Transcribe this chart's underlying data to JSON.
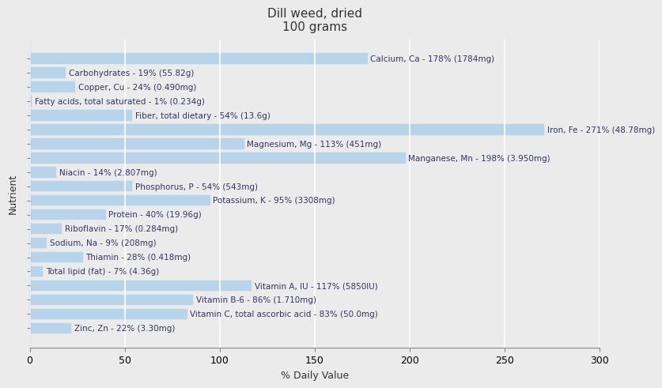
{
  "title": "Dill weed, dried\n100 grams",
  "xlabel": "% Daily Value",
  "ylabel": "Nutrient",
  "xlim": [
    0,
    300
  ],
  "xticks": [
    0,
    50,
    100,
    150,
    200,
    250,
    300
  ],
  "background_color": "#ebebeb",
  "plot_bg_color": "#ebebeb",
  "bar_color": "#b8d4ea",
  "bar_edge_color": "#b8d4ea",
  "grid_color": "#ffffff",
  "nutrients": [
    {
      "label": "Calcium, Ca - 178% (1784mg)",
      "value": 178
    },
    {
      "label": "Carbohydrates - 19% (55.82g)",
      "value": 19
    },
    {
      "label": "Copper, Cu - 24% (0.490mg)",
      "value": 24
    },
    {
      "label": "Fatty acids, total saturated - 1% (0.234g)",
      "value": 1
    },
    {
      "label": "Fiber, total dietary - 54% (13.6g)",
      "value": 54
    },
    {
      "label": "Iron, Fe - 271% (48.78mg)",
      "value": 271
    },
    {
      "label": "Magnesium, Mg - 113% (451mg)",
      "value": 113
    },
    {
      "label": "Manganese, Mn - 198% (3.950mg)",
      "value": 198
    },
    {
      "label": "Niacin - 14% (2.807mg)",
      "value": 14
    },
    {
      "label": "Phosphorus, P - 54% (543mg)",
      "value": 54
    },
    {
      "label": "Potassium, K - 95% (3308mg)",
      "value": 95
    },
    {
      "label": "Protein - 40% (19.96g)",
      "value": 40
    },
    {
      "label": "Riboflavin - 17% (0.284mg)",
      "value": 17
    },
    {
      "label": "Sodium, Na - 9% (208mg)",
      "value": 9
    },
    {
      "label": "Thiamin - 28% (0.418mg)",
      "value": 28
    },
    {
      "label": "Total lipid (fat) - 7% (4.36g)",
      "value": 7
    },
    {
      "label": "Vitamin A, IU - 117% (5850IU)",
      "value": 117
    },
    {
      "label": "Vitamin B-6 - 86% (1.710mg)",
      "value": 86
    },
    {
      "label": "Vitamin C, total ascorbic acid - 83% (50.0mg)",
      "value": 83
    },
    {
      "label": "Zinc, Zn - 22% (3.30mg)",
      "value": 22
    }
  ],
  "title_fontsize": 11,
  "axis_label_fontsize": 9,
  "tick_fontsize": 9,
  "bar_label_fontsize": 7.5,
  "title_color": "#333333",
  "label_color": "#333366"
}
